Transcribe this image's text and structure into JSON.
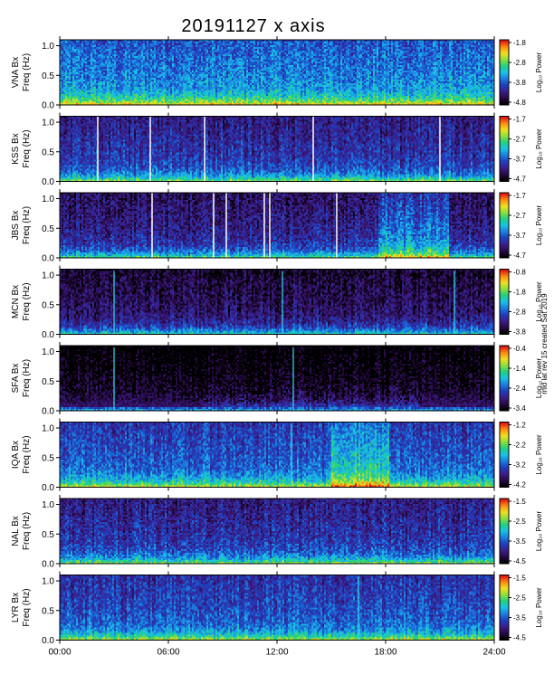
{
  "title": "20191127 x axis",
  "side_note": "mid lat rev 15 created Sat 2019",
  "chart_data": {
    "type": "heatmap",
    "x_ticks": [
      "00:00",
      "06:00",
      "12:00",
      "18:00",
      "24:00"
    ],
    "x_range_hours": [
      0,
      24
    ],
    "y_ticks": [
      "0.0",
      "0.5",
      "1.0"
    ],
    "y_range_hz": [
      0,
      1.1
    ],
    "colorbar_title": "Log₁₀ Power",
    "colormap": [
      "#000000",
      "#2a0a4a",
      "#3b1f8c",
      "#1f3fbf",
      "#1a7fe0",
      "#19c3e6",
      "#20d080",
      "#8ee03a",
      "#f0e020",
      "#ff8a10",
      "#e01010"
    ],
    "panels": [
      {
        "station": "VNA",
        "ylabel_1": "VNA Bx",
        "ylabel_2": "Freq (Hz)",
        "cbar": [
          "-1.8",
          "-2.8",
          "-3.8",
          "-4.8"
        ],
        "base": 0.45,
        "bg": 0.1,
        "white_lines_h": [],
        "bright_lines_h": []
      },
      {
        "station": "KSS",
        "ylabel_1": "KSS Bx",
        "ylabel_2": "Freq (Hz)",
        "cbar": [
          "-1.7",
          "-2.7",
          "-3.7",
          "-4.7"
        ],
        "base": 0.3,
        "bg": 0.08,
        "white_lines_h": [
          2.1,
          5.0,
          8.0,
          14.0,
          21.0
        ],
        "bright_lines_h": []
      },
      {
        "station": "JBS",
        "ylabel_1": "JBS Bx",
        "ylabel_2": "Freq (Hz)",
        "cbar": [
          "-1.7",
          "-2.7",
          "-3.7",
          "-4.7"
        ],
        "base": 0.24,
        "bg": 0.07,
        "white_lines_h": [
          5.1,
          8.5,
          9.2,
          11.3,
          11.6,
          15.3
        ],
        "bright_lines_h": [],
        "burst_h": [
          17.6,
          21.5
        ]
      },
      {
        "station": "MCN",
        "ylabel_1": "MCN Bx",
        "ylabel_2": "Freq (Hz)",
        "cbar": [
          "-0.8",
          "-1.8",
          "-2.8",
          "-3.8"
        ],
        "base": 0.18,
        "bg": 0.04,
        "white_lines_h": [],
        "bright_lines_h": [
          3.0,
          12.3,
          21.8
        ]
      },
      {
        "station": "SFA",
        "ylabel_1": "SFA Bx",
        "ylabel_2": "Freq (Hz)",
        "cbar": [
          "-0.4",
          "-1.4",
          "-2.4",
          "-3.4"
        ],
        "base": 0.08,
        "bg": 0.0,
        "white_lines_h": [],
        "bright_lines_h": [
          3.0,
          12.9
        ]
      },
      {
        "station": "IQA",
        "ylabel_1": "IQA Bx",
        "ylabel_2": "Freq (Hz)",
        "cbar": [
          "-1.2",
          "-2.2",
          "-3.2",
          "-4.2"
        ],
        "base": 0.38,
        "bg": 0.1,
        "white_lines_h": [],
        "bright_lines_h": [
          12.8
        ],
        "burst_h": [
          15.0,
          18.2
        ]
      },
      {
        "station": "NAL",
        "ylabel_1": "NAL Bx",
        "ylabel_2": "Freq (Hz)",
        "cbar": [
          "-1.5",
          "-2.5",
          "-3.5",
          "-4.5"
        ],
        "base": 0.3,
        "bg": 0.07,
        "white_lines_h": [],
        "bright_lines_h": []
      },
      {
        "station": "LYR",
        "ylabel_1": "LYR Bx",
        "ylabel_2": "Freq (Hz)",
        "cbar": [
          "-1.5",
          "-2.5",
          "-3.5",
          "-4.5"
        ],
        "base": 0.36,
        "bg": 0.09,
        "white_lines_h": [],
        "bright_lines_h": [
          16.5
        ]
      }
    ]
  }
}
